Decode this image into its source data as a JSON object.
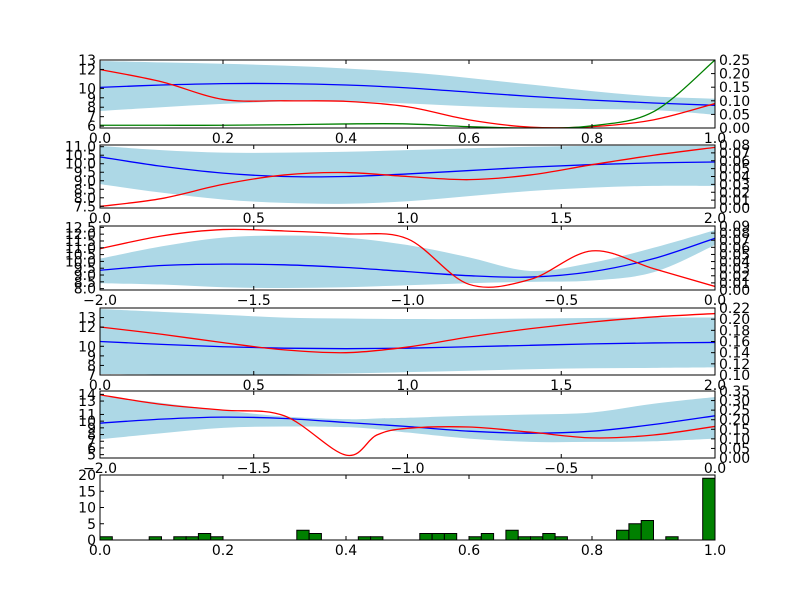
{
  "colors": {
    "band": "#add8e6",
    "mean": "#0000ff",
    "secondary": "#ff0000",
    "tertiary": "#008000",
    "hist": "#008000"
  },
  "chart_data": [
    {
      "type": "line",
      "xlim": [
        0,
        1
      ],
      "ylim": [
        5.8,
        13
      ],
      "y2lim": [
        0,
        0.25
      ],
      "xticks": [
        "0.0",
        "0.2",
        "0.4",
        "0.6",
        "0.8",
        "1.0"
      ],
      "yticks": [
        "6",
        "7",
        "8",
        "9",
        "10",
        "12",
        "13"
      ],
      "y2ticks": [
        "0.00",
        "0.05",
        "0.10",
        "0.15",
        "0.20",
        "0.25"
      ],
      "x": [
        0,
        0.1,
        0.2,
        0.3,
        0.4,
        0.5,
        0.6,
        0.7,
        0.8,
        0.9,
        1.0
      ],
      "mean": [
        10.1,
        10.35,
        10.5,
        10.5,
        10.35,
        10.05,
        9.6,
        9.15,
        8.75,
        8.45,
        8.2
      ],
      "band_upper": [
        12.9,
        12.75,
        12.6,
        12.4,
        12.1,
        11.7,
        11.1,
        10.4,
        9.7,
        9.15,
        8.9
      ],
      "band_lower": [
        7.6,
        8.0,
        8.35,
        8.6,
        8.6,
        8.4,
        8.1,
        7.9,
        7.8,
        7.7,
        7.2
      ],
      "secondary_right_axis": [
        0.215,
        0.17,
        0.105,
        0.1,
        0.098,
        0.078,
        0.03,
        0.003,
        0.005,
        0.03,
        0.09
      ],
      "tertiary_right_axis": [
        0.01,
        0.01,
        0.01,
        0.012,
        0.015,
        0.015,
        0.005,
        0.0,
        0.008,
        0.06,
        0.25
      ]
    },
    {
      "type": "line",
      "xlim": [
        0,
        2
      ],
      "ylim": [
        7.4,
        11.1
      ],
      "y2lim": [
        0,
        0.08
      ],
      "xticks": [
        "0.0",
        "0.5",
        "1.0",
        "1.5",
        "2.0"
      ],
      "yticks": [
        "7.5",
        "8.0",
        "8.5",
        "9.0",
        "9.5",
        "10.0",
        "10.5",
        "11.0"
      ],
      "y2ticks": [
        "0.00",
        "0.01",
        "0.02",
        "0.03",
        "0.04",
        "0.05",
        "0.06",
        "0.07",
        "0.08"
      ],
      "x": [
        0,
        0.2,
        0.4,
        0.6,
        0.8,
        1.0,
        1.2,
        1.4,
        1.6,
        1.8,
        2.0
      ],
      "mean": [
        10.4,
        9.85,
        9.45,
        9.25,
        9.25,
        9.4,
        9.6,
        9.8,
        9.95,
        10.05,
        10.1
      ],
      "band_upper": [
        11.05,
        10.8,
        10.65,
        10.65,
        10.7,
        10.8,
        10.9,
        11.0,
        11.05,
        11.05,
        11.05
      ],
      "band_lower": [
        8.8,
        8.3,
        7.9,
        7.7,
        7.65,
        7.8,
        8.1,
        8.4,
        8.6,
        8.7,
        8.7
      ],
      "secondary_right_axis": [
        0.002,
        0.012,
        0.03,
        0.042,
        0.045,
        0.04,
        0.036,
        0.042,
        0.055,
        0.067,
        0.077
      ]
    },
    {
      "type": "line",
      "xlim": [
        -2,
        0
      ],
      "ylim": [
        7.9,
        12.6
      ],
      "y2lim": [
        0,
        0.09
      ],
      "xticks": [
        "−2.0",
        "−1.5",
        "−1.0",
        "−0.5",
        "0.0"
      ],
      "yticks": [
        "8.0",
        "8.5",
        "9.0",
        "9.5",
        "10.0",
        "10.5",
        "11.0",
        "11.5",
        "12.0",
        "12.5"
      ],
      "y2ticks": [
        "0.00",
        "0.01",
        "0.02",
        "0.03",
        "0.04",
        "0.05",
        "0.06",
        "0.07",
        "0.08",
        "0.09"
      ],
      "x": [
        -2.0,
        -1.8,
        -1.6,
        -1.4,
        -1.2,
        -1.0,
        -0.8,
        -0.6,
        -0.4,
        -0.2,
        0.0
      ],
      "mean": [
        9.35,
        9.7,
        9.8,
        9.75,
        9.55,
        9.25,
        8.95,
        8.85,
        9.25,
        10.2,
        11.7
      ],
      "band_upper": [
        10.2,
        11.1,
        11.75,
        11.9,
        11.75,
        11.2,
        10.3,
        9.3,
        9.9,
        11.0,
        12.3
      ],
      "band_lower": [
        8.4,
        8.3,
        8.1,
        8.05,
        8.1,
        8.25,
        8.4,
        8.5,
        8.6,
        9.2,
        11.2
      ],
      "secondary_right_axis": [
        0.058,
        0.076,
        0.085,
        0.083,
        0.079,
        0.072,
        0.008,
        0.015,
        0.055,
        0.03,
        0.005
      ]
    },
    {
      "type": "line",
      "xlim": [
        0,
        2
      ],
      "ylim": [
        7,
        14
      ],
      "y2lim": [
        0.1,
        0.22
      ],
      "xticks": [
        "0.0",
        "0.5",
        "1.0",
        "1.5",
        "2.0"
      ],
      "yticks": [
        "7",
        "8",
        "9",
        "10",
        "12",
        "13"
      ],
      "y2ticks": [
        "0.10",
        "0.12",
        "0.14",
        "0.16",
        "0.18",
        "0.20",
        "0.22"
      ],
      "x": [
        0,
        0.2,
        0.4,
        0.6,
        0.8,
        1.0,
        1.2,
        1.4,
        1.6,
        1.8,
        2.0
      ],
      "mean": [
        10.5,
        10.2,
        9.95,
        9.8,
        9.75,
        9.8,
        9.95,
        10.1,
        10.25,
        10.35,
        10.4
      ],
      "band_upper": [
        13.9,
        13.6,
        13.3,
        13.0,
        12.9,
        12.85,
        12.85,
        12.9,
        12.95,
        13.0,
        13.0
      ],
      "band_lower": [
        7.1,
        7.05,
        7.0,
        7.05,
        7.15,
        7.3,
        7.45,
        7.6,
        7.7,
        7.75,
        7.8
      ],
      "secondary_right_axis": [
        0.186,
        0.173,
        0.158,
        0.145,
        0.14,
        0.15,
        0.168,
        0.183,
        0.195,
        0.204,
        0.21
      ]
    },
    {
      "type": "line",
      "xlim": [
        -2,
        0
      ],
      "ylim": [
        4.5,
        14.5
      ],
      "y2lim": [
        0,
        0.35
      ],
      "xticks": [
        "−2.0",
        "−1.5",
        "−1.0",
        "−0.5",
        "0.0"
      ],
      "yticks": [
        "5",
        "6",
        "7",
        "8",
        "9",
        "10",
        "11",
        "13",
        "14"
      ],
      "y2ticks": [
        "0.00",
        "0.05",
        "0.10",
        "0.15",
        "0.20",
        "0.25",
        "0.30",
        "0.35"
      ],
      "x": [
        -2.0,
        -1.8,
        -1.6,
        -1.4,
        -1.2,
        -1.1,
        -1.0,
        -0.8,
        -0.6,
        -0.4,
        -0.2,
        0.0
      ],
      "mean": [
        9.7,
        10.3,
        10.6,
        10.4,
        9.8,
        9.5,
        9.2,
        8.5,
        8.2,
        8.5,
        9.5,
        10.8
      ],
      "band_upper": [
        13.8,
        12.7,
        11.6,
        10.7,
        10.3,
        10.4,
        10.5,
        10.8,
        11.0,
        11.3,
        12.6,
        13.6
      ],
      "band_lower": [
        7.3,
        8.2,
        9.0,
        9.2,
        9.1,
        8.8,
        8.3,
        7.4,
        6.9,
        6.9,
        7.0,
        7.4
      ],
      "secondary_right_axis": [
        0.33,
        0.28,
        0.25,
        0.22,
        0.015,
        0.12,
        0.155,
        0.162,
        0.135,
        0.105,
        0.12,
        0.165
      ]
    },
    {
      "type": "bar",
      "xlim": [
        0,
        1
      ],
      "ylim": [
        0,
        20
      ],
      "xticks": [
        "0.0",
        "0.2",
        "0.4",
        "0.6",
        "0.8",
        "1.0"
      ],
      "yticks": [
        "0",
        "5",
        "10",
        "15",
        "20"
      ],
      "bin_width": 0.02,
      "bins": [
        {
          "x": 0.01,
          "count": 1
        },
        {
          "x": 0.09,
          "count": 1
        },
        {
          "x": 0.13,
          "count": 1
        },
        {
          "x": 0.15,
          "count": 1
        },
        {
          "x": 0.17,
          "count": 2
        },
        {
          "x": 0.19,
          "count": 1
        },
        {
          "x": 0.33,
          "count": 3
        },
        {
          "x": 0.35,
          "count": 2
        },
        {
          "x": 0.43,
          "count": 1
        },
        {
          "x": 0.45,
          "count": 1
        },
        {
          "x": 0.53,
          "count": 2
        },
        {
          "x": 0.55,
          "count": 2
        },
        {
          "x": 0.57,
          "count": 2
        },
        {
          "x": 0.61,
          "count": 1
        },
        {
          "x": 0.63,
          "count": 2
        },
        {
          "x": 0.67,
          "count": 3
        },
        {
          "x": 0.69,
          "count": 1
        },
        {
          "x": 0.71,
          "count": 1
        },
        {
          "x": 0.73,
          "count": 2
        },
        {
          "x": 0.75,
          "count": 1
        },
        {
          "x": 0.85,
          "count": 3
        },
        {
          "x": 0.87,
          "count": 5
        },
        {
          "x": 0.89,
          "count": 6
        },
        {
          "x": 0.93,
          "count": 1
        },
        {
          "x": 0.99,
          "count": 19
        }
      ]
    }
  ]
}
